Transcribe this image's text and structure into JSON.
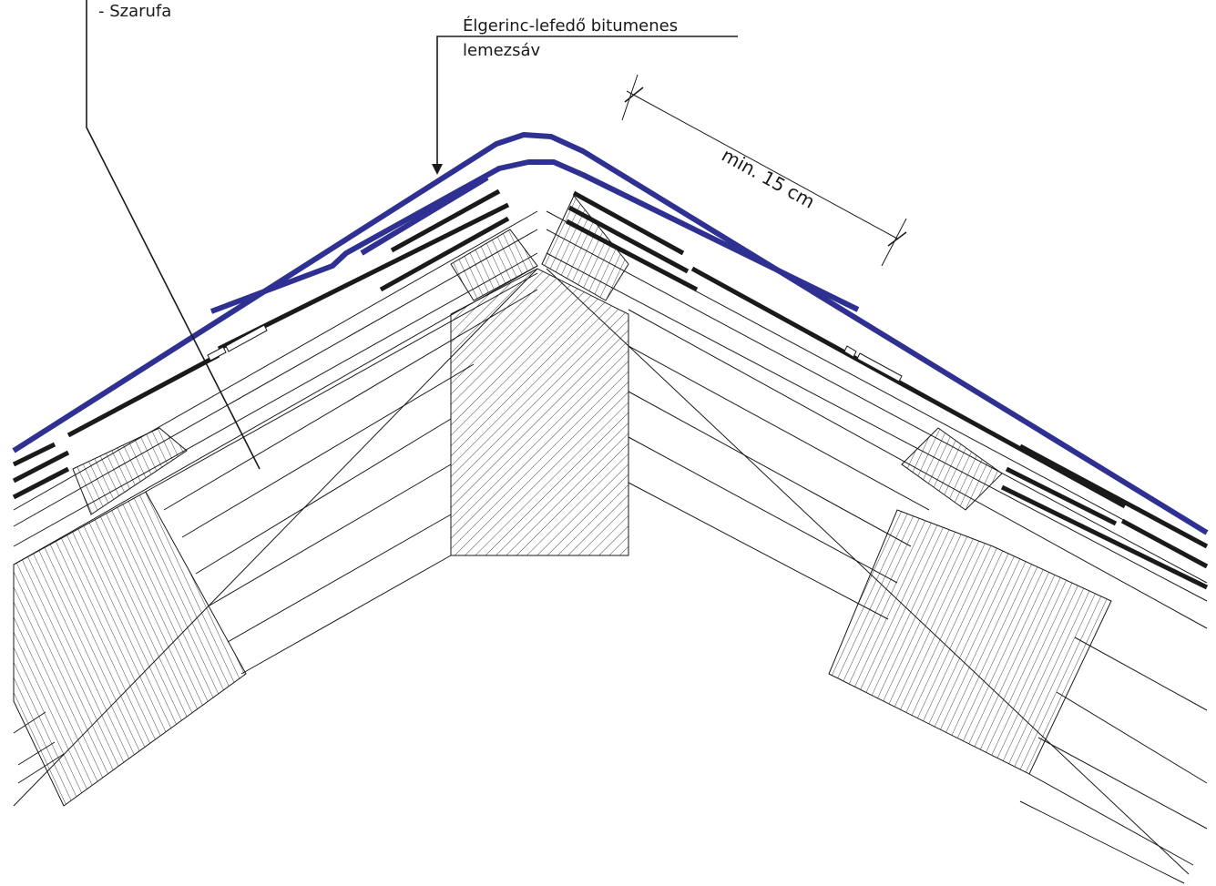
{
  "labels": {
    "rafter": "- Szarufa",
    "ridge_strip_line1": "Élgerinc-lefedő bitumenes",
    "ridge_strip_line2": "lemezsáv",
    "dimension": "min. 15 cm"
  },
  "colors": {
    "ridge_strip": "#2e3192",
    "shingle": "#1a1a1a",
    "line": "#1a1a1a",
    "background": "#ffffff"
  }
}
